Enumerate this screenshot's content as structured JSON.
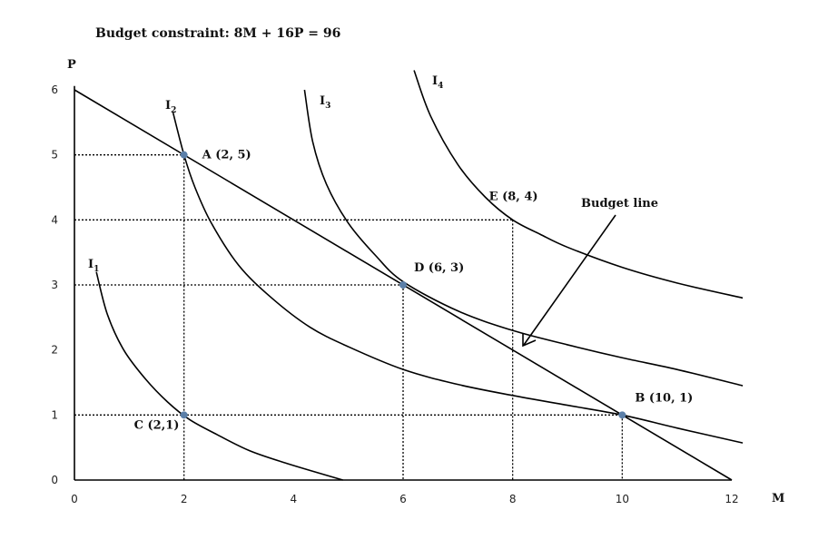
{
  "chart_data": {
    "type": "line",
    "title": "Budget constraint: 8M + 16P = 96",
    "xlabel": "M",
    "ylabel": "P",
    "xlim": [
      0,
      12
    ],
    "ylim": [
      0,
      6
    ],
    "x_ticks": [
      "0",
      "2",
      "4",
      "6",
      "8",
      "10",
      "12"
    ],
    "y_ticks": [
      "0",
      "1",
      "2",
      "3",
      "4",
      "5",
      "6"
    ],
    "grid": false,
    "budget_line": {
      "x": [
        0,
        12
      ],
      "y": [
        6,
        0
      ]
    },
    "indifference_curves": [
      {
        "name": "I1",
        "x": [
          0.4,
          0.6,
          0.9,
          1.3,
          1.7,
          2.1,
          2.6,
          3.2,
          3.9,
          4.9
        ],
        "y": [
          3.2,
          2.55,
          2.0,
          1.55,
          1.2,
          0.93,
          0.7,
          0.45,
          0.25,
          0.0
        ]
      },
      {
        "name": "I2",
        "x": [
          1.8,
          2.0,
          2.2,
          2.5,
          3.0,
          3.6,
          4.3,
          5.0,
          6.0,
          7.0,
          8.0,
          9.0,
          10.0,
          11.0,
          12.2
        ],
        "y": [
          5.65,
          5.0,
          4.5,
          3.95,
          3.3,
          2.8,
          2.35,
          2.05,
          1.7,
          1.47,
          1.3,
          1.15,
          1.0,
          0.8,
          0.57
        ]
      },
      {
        "name": "I3",
        "x": [
          4.2,
          4.35,
          4.6,
          5.0,
          5.5,
          6.0,
          7.0,
          8.0,
          9.0,
          10.0,
          11.0,
          12.2
        ],
        "y": [
          6.0,
          5.2,
          4.55,
          3.95,
          3.45,
          3.05,
          2.6,
          2.3,
          2.08,
          1.88,
          1.7,
          1.45
        ]
      },
      {
        "name": "I4",
        "x": [
          6.2,
          6.5,
          7.0,
          7.5,
          8.0,
          8.5,
          9.0,
          10.0,
          11.0,
          12.2
        ],
        "y": [
          6.3,
          5.6,
          4.85,
          4.35,
          4.0,
          3.78,
          3.58,
          3.27,
          3.03,
          2.8
        ]
      }
    ],
    "points": [
      {
        "label": "A (2, 5)",
        "x": 2,
        "y": 5,
        "dot": true
      },
      {
        "label": "B (10, 1)",
        "x": 10,
        "y": 1,
        "dot": true
      },
      {
        "label": "C (2,1)",
        "x": 2,
        "y": 1,
        "dot": true
      },
      {
        "label": "D (6, 3)",
        "x": 6,
        "y": 3,
        "dot": true
      },
      {
        "label": "E (8, 4)",
        "x": 8,
        "y": 4,
        "dot": false
      }
    ],
    "guides": [
      {
        "x": 2,
        "y": 5
      },
      {
        "x": 10,
        "y": 1
      },
      {
        "x": 6,
        "y": 3
      },
      {
        "x": 8,
        "y": 4
      }
    ],
    "annotation": {
      "text": "Budget line"
    },
    "curve_labels": [
      {
        "base": "I",
        "sub": "1"
      },
      {
        "base": "I",
        "sub": "2"
      },
      {
        "base": "I",
        "sub": "3"
      },
      {
        "base": "I",
        "sub": "4"
      }
    ],
    "colors": {
      "line": "#000000",
      "point": "#5b7fa8"
    }
  }
}
